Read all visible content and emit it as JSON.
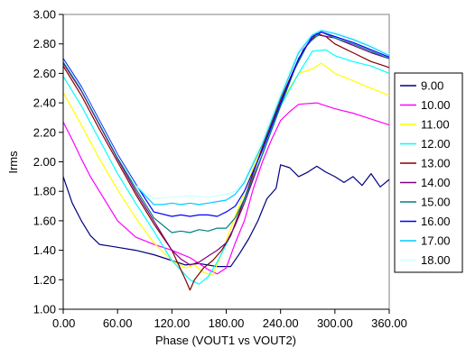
{
  "chart_data": {
    "type": "line",
    "title": "",
    "xlabel": "Phase (VOUT1 vs VOUT2)",
    "ylabel": "Irms",
    "xlim": [
      0,
      360
    ],
    "ylim": [
      1.0,
      3.0
    ],
    "x_ticks": [
      "0.00",
      "60.00",
      "120.00",
      "180.00",
      "240.00",
      "300.00",
      "360.00"
    ],
    "y_ticks": [
      "1.00",
      "1.20",
      "1.40",
      "1.60",
      "1.80",
      "2.00",
      "2.20",
      "2.40",
      "2.60",
      "2.80",
      "3.00"
    ],
    "grid": false,
    "legend_position": "right",
    "series": [
      {
        "name": "9.00",
        "color": "#000080",
        "points": [
          [
            0,
            1.9
          ],
          [
            10,
            1.72
          ],
          [
            20,
            1.6
          ],
          [
            30,
            1.5
          ],
          [
            40,
            1.44
          ],
          [
            60,
            1.42
          ],
          [
            80,
            1.4
          ],
          [
            100,
            1.37
          ],
          [
            120,
            1.33
          ],
          [
            135,
            1.3
          ],
          [
            150,
            1.31
          ],
          [
            170,
            1.29
          ],
          [
            185,
            1.29
          ],
          [
            195,
            1.38
          ],
          [
            205,
            1.48
          ],
          [
            215,
            1.6
          ],
          [
            225,
            1.75
          ],
          [
            235,
            1.82
          ],
          [
            240,
            1.98
          ],
          [
            250,
            1.96
          ],
          [
            260,
            1.9
          ],
          [
            270,
            1.93
          ],
          [
            280,
            1.97
          ],
          [
            290,
            1.93
          ],
          [
            300,
            1.9
          ],
          [
            310,
            1.86
          ],
          [
            320,
            1.9
          ],
          [
            330,
            1.84
          ],
          [
            340,
            1.92
          ],
          [
            350,
            1.83
          ],
          [
            360,
            1.88
          ]
        ]
      },
      {
        "name": "10.00",
        "color": "#ff00ff",
        "points": [
          [
            0,
            2.27
          ],
          [
            10,
            2.15
          ],
          [
            20,
            2.02
          ],
          [
            30,
            1.9
          ],
          [
            40,
            1.8
          ],
          [
            60,
            1.6
          ],
          [
            80,
            1.49
          ],
          [
            100,
            1.44
          ],
          [
            120,
            1.4
          ],
          [
            140,
            1.35
          ],
          [
            160,
            1.27
          ],
          [
            170,
            1.24
          ],
          [
            180,
            1.28
          ],
          [
            190,
            1.45
          ],
          [
            200,
            1.6
          ],
          [
            210,
            1.82
          ],
          [
            220,
            2.0
          ],
          [
            230,
            2.15
          ],
          [
            240,
            2.28
          ],
          [
            250,
            2.34
          ],
          [
            260,
            2.39
          ],
          [
            280,
            2.4
          ],
          [
            300,
            2.36
          ],
          [
            320,
            2.33
          ],
          [
            340,
            2.29
          ],
          [
            360,
            2.25
          ]
        ]
      },
      {
        "name": "11.00",
        "color": "#ffff00",
        "points": [
          [
            0,
            2.47
          ],
          [
            20,
            2.25
          ],
          [
            40,
            2.02
          ],
          [
            60,
            1.81
          ],
          [
            80,
            1.62
          ],
          [
            100,
            1.45
          ],
          [
            120,
            1.33
          ],
          [
            135,
            1.28
          ],
          [
            145,
            1.3
          ],
          [
            155,
            1.25
          ],
          [
            165,
            1.23
          ],
          [
            175,
            1.38
          ],
          [
            185,
            1.55
          ],
          [
            200,
            1.8
          ],
          [
            220,
            2.12
          ],
          [
            240,
            2.4
          ],
          [
            260,
            2.6
          ],
          [
            275,
            2.63
          ],
          [
            285,
            2.67
          ],
          [
            300,
            2.6
          ],
          [
            320,
            2.55
          ],
          [
            340,
            2.5
          ],
          [
            360,
            2.45
          ]
        ]
      },
      {
        "name": "12.00",
        "color": "#00ffff",
        "points": [
          [
            0,
            2.58
          ],
          [
            20,
            2.38
          ],
          [
            40,
            2.15
          ],
          [
            60,
            1.92
          ],
          [
            80,
            1.72
          ],
          [
            100,
            1.53
          ],
          [
            120,
            1.33
          ],
          [
            140,
            1.2
          ],
          [
            150,
            1.17
          ],
          [
            160,
            1.22
          ],
          [
            170,
            1.32
          ],
          [
            185,
            1.5
          ],
          [
            200,
            1.74
          ],
          [
            220,
            2.05
          ],
          [
            240,
            2.38
          ],
          [
            260,
            2.6
          ],
          [
            275,
            2.75
          ],
          [
            290,
            2.76
          ],
          [
            300,
            2.72
          ],
          [
            320,
            2.68
          ],
          [
            340,
            2.65
          ],
          [
            360,
            2.6
          ]
        ]
      },
      {
        "name": "13.00",
        "color": "#800000",
        "points": [
          [
            0,
            2.65
          ],
          [
            20,
            2.45
          ],
          [
            40,
            2.22
          ],
          [
            60,
            2.0
          ],
          [
            80,
            1.78
          ],
          [
            100,
            1.58
          ],
          [
            120,
            1.4
          ],
          [
            135,
            1.2
          ],
          [
            140,
            1.13
          ],
          [
            145,
            1.2
          ],
          [
            155,
            1.28
          ],
          [
            165,
            1.33
          ],
          [
            175,
            1.4
          ],
          [
            185,
            1.5
          ],
          [
            200,
            1.75
          ],
          [
            220,
            2.1
          ],
          [
            240,
            2.42
          ],
          [
            260,
            2.7
          ],
          [
            270,
            2.8
          ],
          [
            280,
            2.87
          ],
          [
            290,
            2.85
          ],
          [
            300,
            2.8
          ],
          [
            320,
            2.74
          ],
          [
            340,
            2.68
          ],
          [
            355,
            2.65
          ],
          [
            360,
            2.64
          ]
        ]
      },
      {
        "name": "14.00",
        "color": "#800080",
        "points": [
          [
            0,
            2.67
          ],
          [
            20,
            2.48
          ],
          [
            40,
            2.25
          ],
          [
            60,
            2.02
          ],
          [
            80,
            1.8
          ],
          [
            100,
            1.6
          ],
          [
            110,
            1.5
          ],
          [
            120,
            1.4
          ],
          [
            130,
            1.34
          ],
          [
            140,
            1.3
          ],
          [
            150,
            1.32
          ],
          [
            160,
            1.36
          ],
          [
            170,
            1.4
          ],
          [
            180,
            1.45
          ],
          [
            190,
            1.57
          ],
          [
            200,
            1.72
          ],
          [
            220,
            2.05
          ],
          [
            240,
            2.38
          ],
          [
            255,
            2.62
          ],
          [
            265,
            2.76
          ],
          [
            275,
            2.83
          ],
          [
            282,
            2.86
          ],
          [
            300,
            2.84
          ],
          [
            320,
            2.79
          ],
          [
            340,
            2.74
          ],
          [
            360,
            2.7
          ]
        ]
      },
      {
        "name": "15.00",
        "color": "#008080",
        "points": [
          [
            0,
            2.68
          ],
          [
            20,
            2.49
          ],
          [
            40,
            2.26
          ],
          [
            60,
            2.03
          ],
          [
            80,
            1.82
          ],
          [
            100,
            1.62
          ],
          [
            120,
            1.52
          ],
          [
            130,
            1.53
          ],
          [
            140,
            1.52
          ],
          [
            150,
            1.54
          ],
          [
            160,
            1.53
          ],
          [
            170,
            1.55
          ],
          [
            180,
            1.55
          ],
          [
            190,
            1.62
          ],
          [
            200,
            1.75
          ],
          [
            220,
            2.05
          ],
          [
            240,
            2.38
          ],
          [
            255,
            2.62
          ],
          [
            270,
            2.8
          ],
          [
            285,
            2.88
          ],
          [
            300,
            2.84
          ],
          [
            320,
            2.8
          ],
          [
            340,
            2.75
          ],
          [
            360,
            2.7
          ]
        ]
      },
      {
        "name": "16.00",
        "color": "#0000ff",
        "points": [
          [
            0,
            2.7
          ],
          [
            20,
            2.51
          ],
          [
            40,
            2.28
          ],
          [
            60,
            2.05
          ],
          [
            80,
            1.85
          ],
          [
            100,
            1.66
          ],
          [
            120,
            1.63
          ],
          [
            130,
            1.64
          ],
          [
            140,
            1.63
          ],
          [
            150,
            1.64
          ],
          [
            160,
            1.64
          ],
          [
            170,
            1.63
          ],
          [
            180,
            1.66
          ],
          [
            190,
            1.7
          ],
          [
            200,
            1.8
          ],
          [
            220,
            2.08
          ],
          [
            240,
            2.4
          ],
          [
            260,
            2.7
          ],
          [
            275,
            2.85
          ],
          [
            285,
            2.88
          ],
          [
            300,
            2.85
          ],
          [
            320,
            2.81
          ],
          [
            340,
            2.76
          ],
          [
            360,
            2.71
          ]
        ]
      },
      {
        "name": "17.00",
        "color": "#00ccff",
        "points": [
          [
            0,
            2.69
          ],
          [
            20,
            2.5
          ],
          [
            40,
            2.27
          ],
          [
            60,
            2.04
          ],
          [
            80,
            1.84
          ],
          [
            100,
            1.71
          ],
          [
            110,
            1.71
          ],
          [
            120,
            1.72
          ],
          [
            130,
            1.71
          ],
          [
            140,
            1.72
          ],
          [
            150,
            1.71
          ],
          [
            160,
            1.72
          ],
          [
            170,
            1.73
          ],
          [
            180,
            1.74
          ],
          [
            190,
            1.78
          ],
          [
            200,
            1.86
          ],
          [
            220,
            2.12
          ],
          [
            240,
            2.44
          ],
          [
            260,
            2.74
          ],
          [
            275,
            2.86
          ],
          [
            285,
            2.89
          ],
          [
            300,
            2.87
          ],
          [
            320,
            2.83
          ],
          [
            340,
            2.78
          ],
          [
            360,
            2.72
          ]
        ]
      },
      {
        "name": "18.00",
        "color": "#ccffff",
        "points": [
          [
            0,
            2.69
          ],
          [
            20,
            2.5
          ],
          [
            40,
            2.27
          ],
          [
            60,
            2.04
          ],
          [
            80,
            1.84
          ],
          [
            100,
            1.75
          ],
          [
            120,
            1.76
          ],
          [
            140,
            1.77
          ],
          [
            160,
            1.76
          ],
          [
            180,
            1.78
          ],
          [
            190,
            1.8
          ],
          [
            200,
            1.88
          ],
          [
            220,
            2.15
          ],
          [
            240,
            2.47
          ],
          [
            260,
            2.76
          ],
          [
            275,
            2.87
          ],
          [
            285,
            2.9
          ],
          [
            300,
            2.88
          ],
          [
            320,
            2.84
          ],
          [
            340,
            2.79
          ],
          [
            360,
            2.73
          ]
        ]
      }
    ]
  }
}
